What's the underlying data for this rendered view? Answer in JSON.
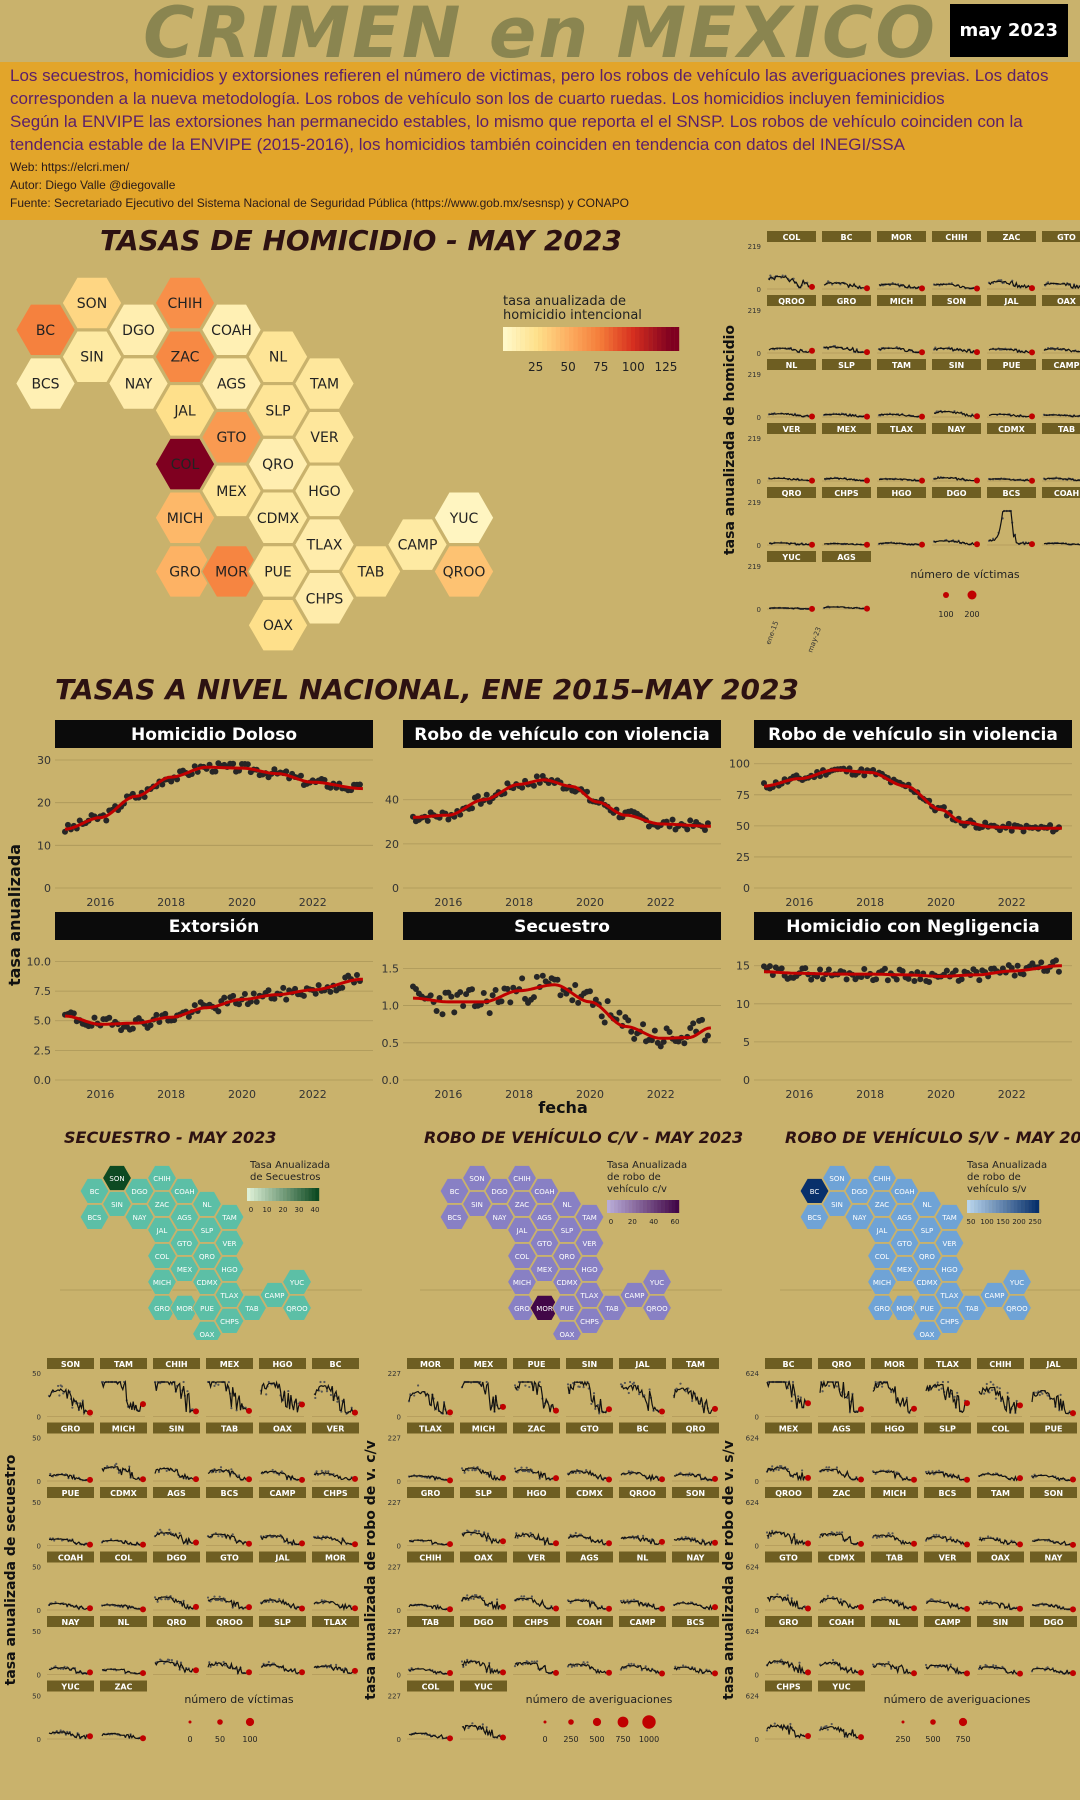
{
  "header": {
    "title": "CRIMEN en MEXICO",
    "date_badge": "may 2023",
    "line1": "Los secuestros, homicidios y extorsiones refieren el número de victimas, pero los robos de vehículo las averiguaciones previas. Los datos",
    "line2": "corresponden a la nueva metodología. Los robos de vehículo son los de cuarto ruedas. Los homicidios incluyen feminicidios",
    "line3": "Según la ENVIPE las extorsiones han permanecido estables, lo mismo que reporta el el SNSP. Los robos de vehículo coinciden con la",
    "line4": "tendencia estable de la ENVIPE (2015-2016), los homicidios también coinciden en tendencia con datos del INEGI/SSA",
    "web": "Web: https://elcri.men/",
    "author": "Autor: Diego Valle @diegovalle",
    "source": "Fuente: Secretariado Ejecutivo del Sistema Nacional de Seguridad Pública (https://www.gob.mx/sesnsp) y CONAPO"
  },
  "colors": {
    "background": "#c9b26c",
    "band": "#e2a52a",
    "trend": "#c00000",
    "points": "#262626",
    "strip": "#6e5e22"
  },
  "hom_map": {
    "title": "TASAS DE HOMICIDIO - MAY 2023",
    "legend_title": [
      "tasa anualizada de",
      "homicidio intencional"
    ],
    "legend_ticks": [
      "25",
      "50",
      "75",
      "100",
      "125"
    ],
    "states": [
      {
        "abbr": "SON",
        "value": 30
      },
      {
        "abbr": "CHIH",
        "value": 65
      },
      {
        "abbr": "BC",
        "value": 72
      },
      {
        "abbr": "DGO",
        "value": 10
      },
      {
        "abbr": "COAH",
        "value": 8
      },
      {
        "abbr": "SIN",
        "value": 15
      },
      {
        "abbr": "ZAC",
        "value": 68
      },
      {
        "abbr": "NL",
        "value": 20
      },
      {
        "abbr": "BCS",
        "value": 8
      },
      {
        "abbr": "NAY",
        "value": 12
      },
      {
        "abbr": "AGS",
        "value": 10
      },
      {
        "abbr": "TAM",
        "value": 18
      },
      {
        "abbr": "JAL",
        "value": 25
      },
      {
        "abbr": "SLP",
        "value": 20
      },
      {
        "abbr": "GTO",
        "value": 60
      },
      {
        "abbr": "VER",
        "value": 18
      },
      {
        "abbr": "COL",
        "value": 130
      },
      {
        "abbr": "QRO",
        "value": 10
      },
      {
        "abbr": "MEX",
        "value": 20
      },
      {
        "abbr": "HGO",
        "value": 14
      },
      {
        "abbr": "MICH",
        "value": 45
      },
      {
        "abbr": "CDMX",
        "value": 15
      },
      {
        "abbr": "YUC",
        "value": 3
      },
      {
        "abbr": "TLAX",
        "value": 12
      },
      {
        "abbr": "CAMP",
        "value": 15
      },
      {
        "abbr": "GRO",
        "value": 48
      },
      {
        "abbr": "MOR",
        "value": 70
      },
      {
        "abbr": "TAB",
        "value": 22
      },
      {
        "abbr": "QROO",
        "value": 40
      },
      {
        "abbr": "PUE",
        "value": 18
      },
      {
        "abbr": "CHPS",
        "value": 12
      },
      {
        "abbr": "OAX",
        "value": 25
      }
    ]
  },
  "hom_small": {
    "ylabel": "tasa anualizada de homicidio",
    "ytop": "219",
    "yzero": "0",
    "states": [
      "COL",
      "BC",
      "MOR",
      "CHIH",
      "ZAC",
      "GTO",
      "QROO",
      "GRO",
      "MICH",
      "SON",
      "JAL",
      "OAX",
      "NL",
      "SLP",
      "TAM",
      "SIN",
      "PUE",
      "CAMP",
      "VER",
      "MEX",
      "TLAX",
      "NAY",
      "CDMX",
      "TAB",
      "QRO",
      "CHPS",
      "HGO",
      "DGO",
      "BCS",
      "COAH",
      "YUC",
      "AGS"
    ],
    "peaks": [
      90,
      45,
      35,
      35,
      55,
      40,
      35,
      45,
      35,
      35,
      30,
      30,
      25,
      20,
      20,
      40,
      20,
      15,
      20,
      20,
      15,
      25,
      15,
      20,
      15,
      10,
      15,
      30,
      200,
      12,
      8,
      15
    ],
    "xticks": [
      "ene-15",
      "may-23"
    ],
    "legend_title": "número de víctimas",
    "legend_labels": [
      "100",
      "200"
    ]
  },
  "national": {
    "title": "TASAS A NIVEL NACIONAL, ENE 2015–MAY 2023",
    "ylabel": "tasa anualizada",
    "xlabel": "fecha",
    "xticks": [
      "2016",
      "2018",
      "2020",
      "2022"
    ]
  },
  "chart_data": [
    {
      "type": "scatter",
      "title": "Homicidio Doloso",
      "yticks": [
        "0",
        "10",
        "20",
        "30"
      ],
      "ylim": [
        0,
        30
      ],
      "x_range": [
        2015.0,
        2023.42
      ],
      "trend": [
        [
          2015.0,
          13.8
        ],
        [
          2016.0,
          16.5
        ],
        [
          2017.0,
          21.5
        ],
        [
          2018.0,
          26.0
        ],
        [
          2019.0,
          28.3
        ],
        [
          2020.0,
          28.1
        ],
        [
          2021.0,
          26.8
        ],
        [
          2022.0,
          24.8
        ],
        [
          2023.4,
          23.3
        ]
      ],
      "amp": 1.1,
      "seed": 3
    },
    {
      "type": "scatter",
      "title": "Robo de vehículo con violencia",
      "yticks": [
        "0",
        "20",
        "40"
      ],
      "ylim": [
        0,
        58
      ],
      "x_range": [
        2015.0,
        2023.42
      ],
      "trend": [
        [
          2015.0,
          32
        ],
        [
          2016.0,
          33
        ],
        [
          2017.0,
          40
        ],
        [
          2018.0,
          47
        ],
        [
          2018.7,
          49
        ],
        [
          2019.5,
          46
        ],
        [
          2020.2,
          39
        ],
        [
          2021.0,
          33
        ],
        [
          2022.0,
          29
        ],
        [
          2023.4,
          28
        ]
      ],
      "amp": 2.3,
      "seed": 7
    },
    {
      "type": "scatter",
      "title": "Robo de vehículo sin violencia",
      "yticks": [
        "0",
        "25",
        "50",
        "75",
        "100"
      ],
      "ylim": [
        0,
        103
      ],
      "x_range": [
        2015.0,
        2023.42
      ],
      "trend": [
        [
          2015.0,
          82
        ],
        [
          2016.0,
          88
        ],
        [
          2017.0,
          95
        ],
        [
          2018.0,
          93
        ],
        [
          2019.0,
          82
        ],
        [
          2020.0,
          63
        ],
        [
          2020.6,
          53
        ],
        [
          2021.5,
          49
        ],
        [
          2022.5,
          48
        ],
        [
          2023.4,
          48
        ]
      ],
      "amp": 3.0,
      "seed": 11
    },
    {
      "type": "scatter",
      "title": "Extorsión",
      "yticks": [
        "0.0",
        "2.5",
        "5.0",
        "7.5",
        "10.0"
      ],
      "ylim": [
        0,
        10.8
      ],
      "x_range": [
        2015.0,
        2023.42
      ],
      "trend": [
        [
          2015.0,
          5.4
        ],
        [
          2016.0,
          4.7
        ],
        [
          2017.0,
          4.8
        ],
        [
          2018.0,
          5.3
        ],
        [
          2019.0,
          6.1
        ],
        [
          2020.0,
          6.8
        ],
        [
          2021.0,
          7.2
        ],
        [
          2022.0,
          7.6
        ],
        [
          2023.4,
          8.5
        ]
      ],
      "amp": 0.55,
      "seed": 19
    },
    {
      "type": "scatter",
      "title": "Secuestro",
      "yticks": [
        "0.0",
        "0.5",
        "1.0",
        "1.5"
      ],
      "ylim": [
        0,
        1.72
      ],
      "x_range": [
        2015.0,
        2023.42
      ],
      "trend": [
        [
          2015.0,
          1.1
        ],
        [
          2016.0,
          1.05
        ],
        [
          2017.0,
          1.05
        ],
        [
          2018.0,
          1.2
        ],
        [
          2019.0,
          1.28
        ],
        [
          2020.0,
          1.05
        ],
        [
          2021.0,
          0.72
        ],
        [
          2022.0,
          0.56
        ],
        [
          2022.8,
          0.57
        ],
        [
          2023.4,
          0.7
        ]
      ],
      "amp": 0.18,
      "seed": 23
    },
    {
      "type": "scatter",
      "title": "Homicidio con Negligencia",
      "yticks": [
        "0",
        "5",
        "10",
        "15"
      ],
      "ylim": [
        0,
        16.8
      ],
      "x_range": [
        2015.0,
        2023.42
      ],
      "trend": [
        [
          2015.0,
          14.2
        ],
        [
          2016.0,
          14.0
        ],
        [
          2017.0,
          13.9
        ],
        [
          2018.0,
          13.9
        ],
        [
          2019.0,
          13.8
        ],
        [
          2020.0,
          13.6
        ],
        [
          2021.0,
          13.8
        ],
        [
          2022.0,
          14.3
        ],
        [
          2023.4,
          15.0
        ]
      ],
      "amp": 0.8,
      "seed": 29
    }
  ],
  "small_maps": [
    {
      "title": "SECUESTRO - MAY 2023",
      "legend_title": [
        "Tasa Anualizada",
        "de Secuestros"
      ],
      "legend_ticks": [
        "0",
        "10",
        "20",
        "30",
        "40"
      ],
      "hi": "SON",
      "ramp": [
        "#ddf0d6",
        "#0d4a22"
      ],
      "base": "#5cbfa6"
    },
    {
      "title": "ROBO DE VEHÍCULO C/V - MAY 2023",
      "legend_title": [
        "Tasa Anualizada",
        "de robo de",
        "vehículo c/v"
      ],
      "legend_ticks": [
        "0",
        "20",
        "40",
        "60"
      ],
      "hi": "MOR",
      "ramp": [
        "#b8acd8",
        "#420748"
      ],
      "base": "#8880c4"
    },
    {
      "title": "ROBO DE VEHÍCULO S/V - MAY 2023",
      "legend_title": [
        "Tasa Anualizada",
        "de robo de",
        "vehículo s/v"
      ],
      "legend_ticks": [
        "50",
        "100",
        "150",
        "200",
        "250"
      ],
      "hi": "BC",
      "ramp": [
        "#b8d4ec",
        "#08306b"
      ],
      "base": "#6fa3d6"
    }
  ],
  "bottom_small": [
    {
      "ylabel": "tasa anualizada de secuestro",
      "ytop": "50",
      "yzero": "0",
      "states": [
        "SON",
        "TAM",
        "CHIH",
        "MEX",
        "HGO",
        "BC",
        "GRO",
        "MICH",
        "SIN",
        "TAB",
        "OAX",
        "VER",
        "PUE",
        "CDMX",
        "AGS",
        "BCS",
        "CAMP",
        "CHPS",
        "COAH",
        "COL",
        "DGO",
        "GTO",
        "JAL",
        "MOR",
        "NAY",
        "NL",
        "QRO",
        "QROO",
        "SLP",
        "TLAX",
        "YUC",
        "ZAC"
      ],
      "legend_title": "número de víctimas",
      "legend_labels": [
        "0",
        "50",
        "100"
      ]
    },
    {
      "ylabel": "tasa anualizada de robo de v. c/v",
      "ytop": "227",
      "yzero": "0",
      "states": [
        "MOR",
        "MEX",
        "PUE",
        "SIN",
        "JAL",
        "TAM",
        "TLAX",
        "MICH",
        "ZAC",
        "GTO",
        "BC",
        "QRO",
        "GRO",
        "SLP",
        "HGO",
        "CDMX",
        "QROO",
        "SON",
        "CHIH",
        "OAX",
        "VER",
        "AGS",
        "NL",
        "NAY",
        "TAB",
        "DGO",
        "CHPS",
        "COAH",
        "CAMP",
        "BCS",
        "COL",
        "YUC"
      ],
      "legend_title": "número de averiguaciones",
      "legend_labels": [
        "0",
        "250",
        "500",
        "750",
        "1000"
      ]
    },
    {
      "ylabel": "tasa anualizada de robo de v. s/v",
      "ytop": "624",
      "yzero": "0",
      "states": [
        "BC",
        "QRO",
        "MOR",
        "TLAX",
        "CHIH",
        "JAL",
        "MEX",
        "AGS",
        "HGO",
        "SLP",
        "COL",
        "PUE",
        "QROO",
        "ZAC",
        "MICH",
        "BCS",
        "TAM",
        "SON",
        "GTO",
        "CDMX",
        "TAB",
        "VER",
        "OAX",
        "NAY",
        "GRO",
        "COAH",
        "NL",
        "CAMP",
        "SIN",
        "DGO",
        "CHPS",
        "YUC"
      ],
      "legend_title": "número de averiguaciones",
      "legend_labels": [
        "250",
        "500",
        "750"
      ]
    }
  ]
}
